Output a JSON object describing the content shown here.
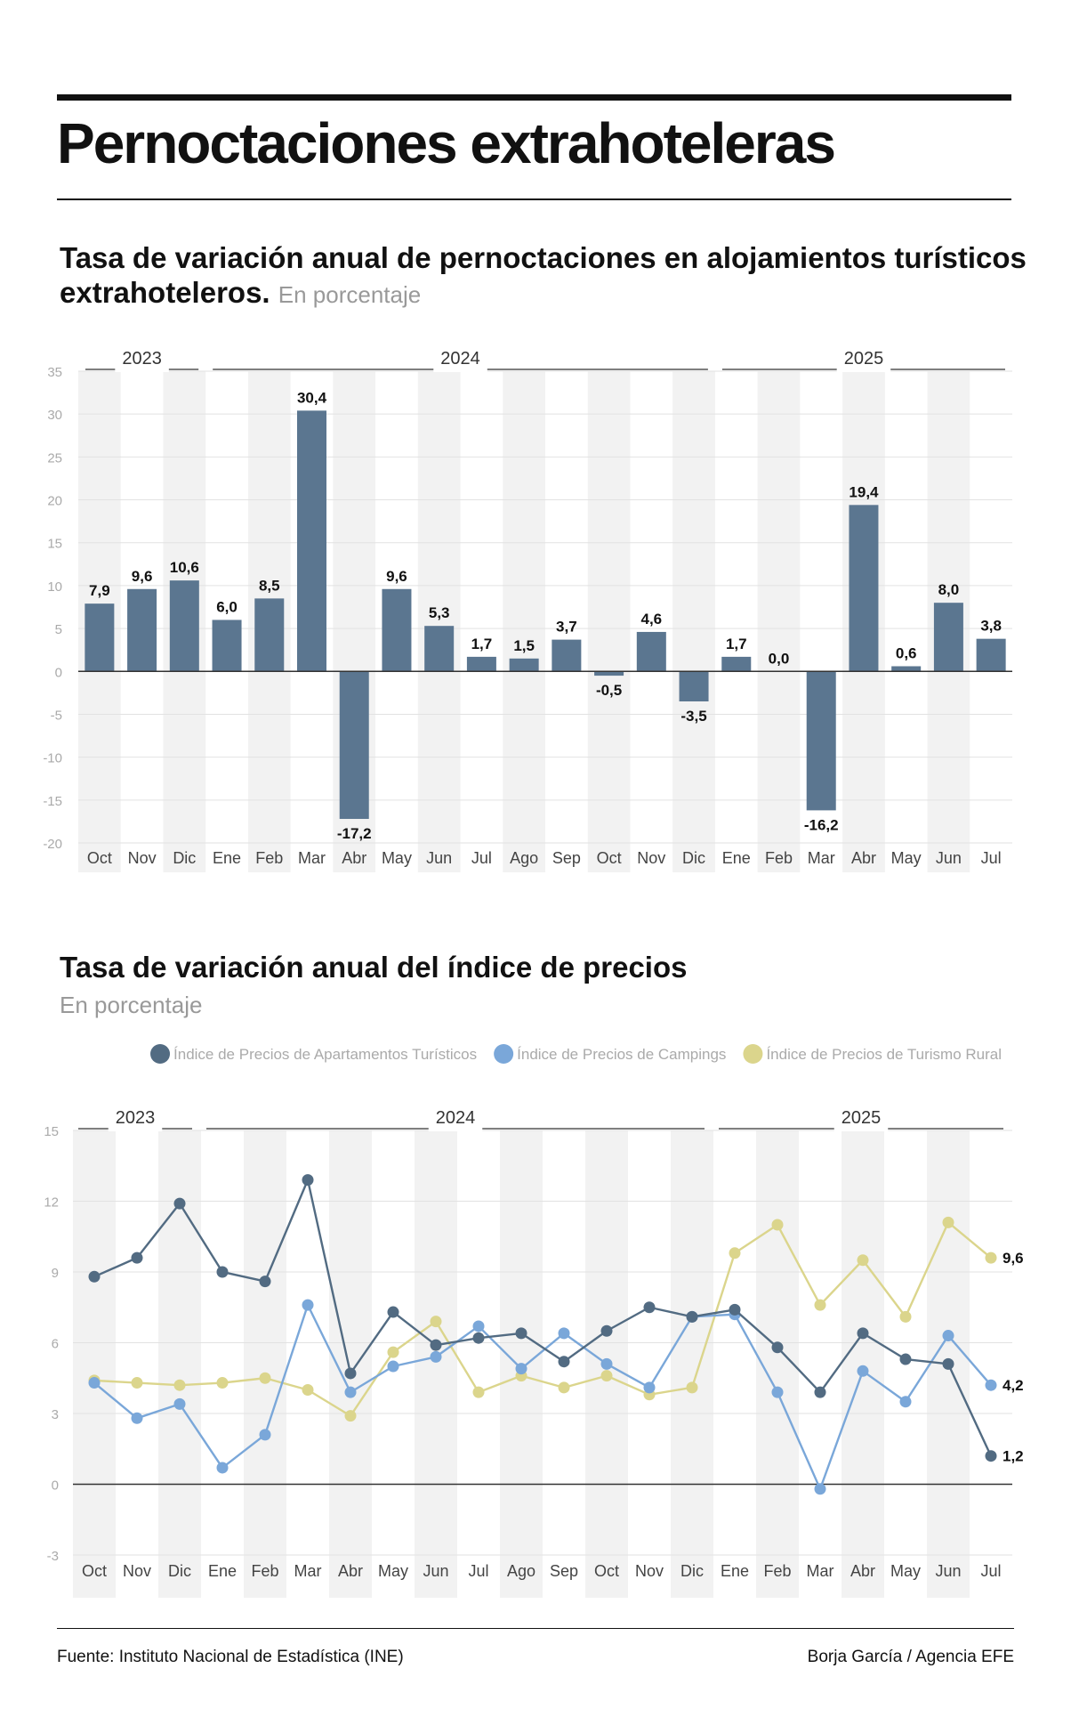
{
  "title": "Pernoctaciones extrahoteleras",
  "subtitle1": "Tasa de variación anual de pernoctaciones en alojamientos turísticos extrahoteleros.",
  "subtitle1_unit": "En porcentaje",
  "subtitle2": "Tasa de variación anual del índice de precios",
  "subtitle2_unit": "En porcentaje",
  "source": "Fuente: Instituto Nacional de Estadística (INE)",
  "credit": "Borja García / Agencia EFE",
  "colors": {
    "bar": "#5b7690",
    "apart": "#526b82",
    "camp": "#7aa7d9",
    "rural": "#dbd58c",
    "band": "#f2f2f2",
    "grid": "#e2e2e2",
    "tick": "#aaaaaa"
  },
  "chart_data": [
    {
      "type": "bar",
      "title": "Tasa de variación anual de pernoctaciones en alojamientos turísticos extrahoteleros. En porcentaje",
      "categories": [
        "Oct",
        "Nov",
        "Dic",
        "Ene",
        "Feb",
        "Mar",
        "Abr",
        "May",
        "Jun",
        "Jul",
        "Ago",
        "Sep",
        "Oct",
        "Nov",
        "Dic",
        "Ene",
        "Feb",
        "Mar",
        "Abr",
        "May",
        "Jun",
        "Jul"
      ],
      "values": [
        7.9,
        9.6,
        10.6,
        6.0,
        8.5,
        30.4,
        -17.2,
        9.6,
        5.3,
        1.7,
        1.5,
        3.7,
        -0.5,
        4.6,
        -3.5,
        1.7,
        0.0,
        -16.2,
        19.4,
        0.6,
        8.0,
        3.8
      ],
      "labels": [
        "7,9",
        "9,6",
        "10,6",
        "6,0",
        "8,5",
        "30,4",
        "-17,2",
        "9,6",
        "5,3",
        "1,7",
        "1,5",
        "3,7",
        "-0,5",
        "4,6",
        "-3,5",
        "1,7",
        "0,0",
        "-16,2",
        "19,4",
        "0,6",
        "8,0",
        "3,8"
      ],
      "years": [
        {
          "label": "2023",
          "from": 0,
          "to": 2
        },
        {
          "label": "2024",
          "from": 3,
          "to": 14
        },
        {
          "label": "2025",
          "from": 15,
          "to": 21
        }
      ],
      "ylim": [
        -20,
        35
      ],
      "yticks": [
        "-20",
        "-15",
        "-10",
        "-5",
        "0",
        "5",
        "10",
        "15",
        "20",
        "25",
        "30",
        "35"
      ],
      "ytick_values": [
        -20,
        -15,
        -10,
        -5,
        0,
        5,
        10,
        15,
        20,
        25,
        30,
        35
      ],
      "xlabel": "",
      "ylabel": ""
    },
    {
      "type": "line",
      "title": "Tasa de variación anual del índice de precios. En porcentaje",
      "categories": [
        "Oct",
        "Nov",
        "Dic",
        "Ene",
        "Feb",
        "Mar",
        "Abr",
        "May",
        "Jun",
        "Jul",
        "Ago",
        "Sep",
        "Oct",
        "Nov",
        "Dic",
        "Ene",
        "Feb",
        "Mar",
        "Abr",
        "May",
        "Jun",
        "Jul"
      ],
      "years": [
        {
          "label": "2023",
          "from": 0,
          "to": 2
        },
        {
          "label": "2024",
          "from": 3,
          "to": 14
        },
        {
          "label": "2025",
          "from": 15,
          "to": 21
        }
      ],
      "series": [
        {
          "name": "Índice de Precios de Apartamentos Turísticos",
          "key": "apart",
          "values": [
            8.8,
            9.6,
            11.9,
            9.0,
            8.6,
            12.9,
            4.7,
            7.3,
            5.9,
            6.2,
            6.4,
            5.2,
            6.5,
            7.5,
            7.1,
            7.4,
            5.8,
            3.9,
            6.4,
            5.3,
            5.1,
            1.2
          ],
          "end_label": "1,2"
        },
        {
          "name": "Índice de Precios de Campings",
          "key": "camp",
          "values": [
            4.3,
            2.8,
            3.4,
            0.7,
            2.1,
            7.6,
            3.9,
            5.0,
            5.4,
            6.7,
            4.9,
            6.4,
            5.1,
            4.1,
            7.1,
            7.2,
            3.9,
            -0.2,
            4.8,
            3.5,
            6.3,
            4.2
          ],
          "end_label": "4,2"
        },
        {
          "name": "Índice de Precios de Turismo Rural",
          "key": "rural",
          "values": [
            4.4,
            4.3,
            4.2,
            4.3,
            4.5,
            4.0,
            2.9,
            5.6,
            6.9,
            3.9,
            4.6,
            4.1,
            4.6,
            3.8,
            4.1,
            9.8,
            11.0,
            7.6,
            9.5,
            7.1,
            11.1,
            9.6
          ],
          "end_label": "9,6"
        }
      ],
      "ylim": [
        -3,
        15
      ],
      "yticks": [
        "-3",
        "0",
        "3",
        "6",
        "9",
        "12",
        "15"
      ],
      "ytick_values": [
        -3,
        0,
        3,
        6,
        9,
        12,
        15
      ],
      "legend": "top-right",
      "xlabel": "",
      "ylabel": ""
    }
  ]
}
